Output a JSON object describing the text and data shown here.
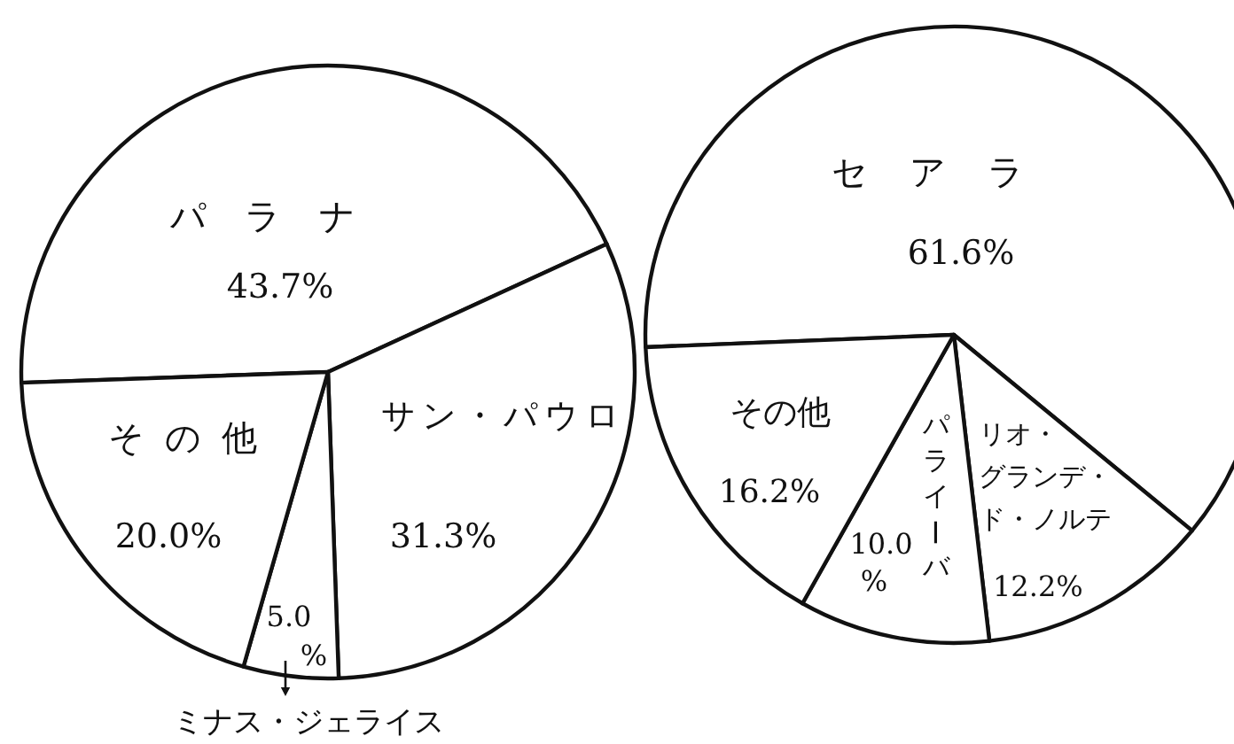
{
  "chart_data": [
    {
      "type": "pie",
      "categories": [
        "パラナ",
        "サン・パウロ",
        "ミナス・ジェライス",
        "その他"
      ],
      "values": [
        43.7,
        31.3,
        5.0,
        20.0
      ],
      "colors": [
        "#ffffff",
        "#ffffff",
        "#ffffff",
        "#ffffff"
      ],
      "value_labels": [
        "43.7%",
        "31.3%",
        "5.0%",
        "20.0%"
      ]
    },
    {
      "type": "pie",
      "categories": [
        "セアラ",
        "リオ・グランデ・ド・ノルテ",
        "パライーバ",
        "その他"
      ],
      "values": [
        61.6,
        12.2,
        10.0,
        16.2
      ],
      "colors": [
        "#ffffff",
        "#ffffff",
        "#ffffff",
        "#ffffff"
      ],
      "value_labels": [
        "61.6%",
        "12.2%",
        "10.0%",
        "16.2%"
      ]
    }
  ]
}
